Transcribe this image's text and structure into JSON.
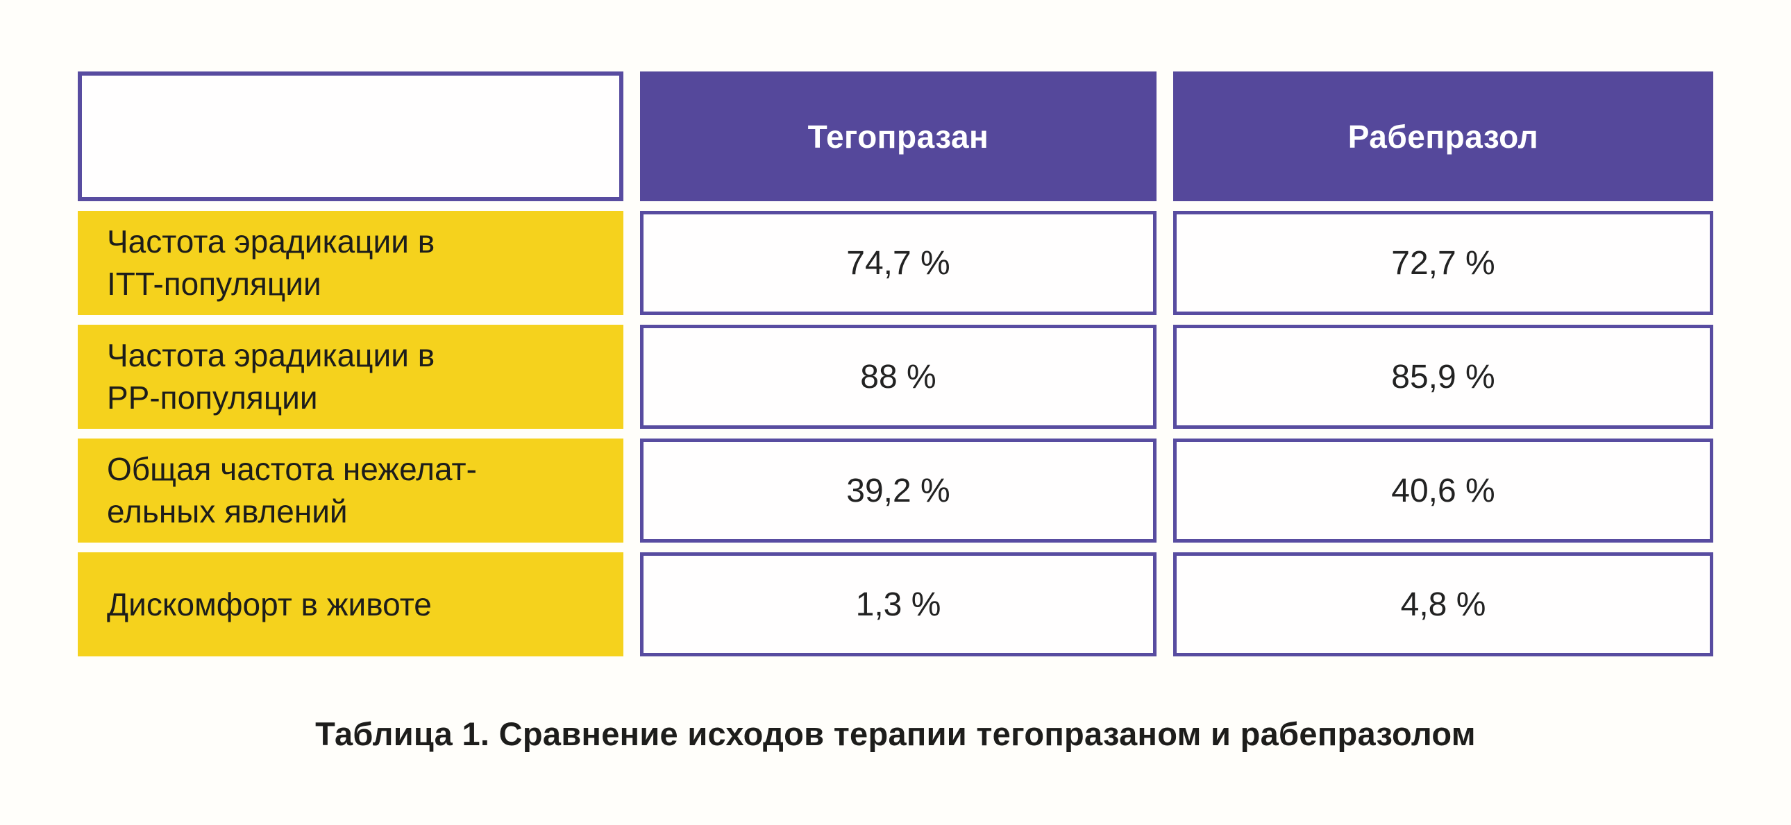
{
  "page": {
    "background": "#fffefa"
  },
  "colors": {
    "header_purple": "#55489B",
    "border_purple": "#584CA0",
    "label_yellow": "#F5D21D",
    "header_text": "#FFFFFF",
    "body_text": "#1D1D1B"
  },
  "table": {
    "columns": [
      "Тегопразан",
      "Рабепразол"
    ],
    "rows": [
      {
        "label": "Частота эрадикации в\nITT-популяции",
        "tegoprazan": "74,7 %",
        "rabeprazol": "72,7 %"
      },
      {
        "label": "Частота эрадикации в\nPP-популяции",
        "tegoprazan": "88 %",
        "rabeprazol": "85,9 %"
      },
      {
        "label": "Общая частота нежелат-\nельных явлений",
        "tegoprazan": "39,2 %",
        "rabeprazol": "40,6 %"
      },
      {
        "label": "Дискомфорт в животе",
        "tegoprazan": "1,3 %",
        "rabeprazol": "4,8 %"
      }
    ],
    "caption": "Таблица 1. Сравнение исходов терапии тегопразаном и рабепразолом"
  },
  "chart_data": {
    "type": "table",
    "title": "Таблица 1. Сравнение исходов терапии тегопразаном и рабепразолом",
    "columns": [
      "",
      "Тегопразан",
      "Рабепразол"
    ],
    "rows": [
      [
        "Частота эрадикации в ITT-популяции",
        "74,7 %",
        "72,7 %"
      ],
      [
        "Частота эрадикации в PP-популяции",
        "88 %",
        "85,9 %"
      ],
      [
        "Общая частота нежелательных явлений",
        "39,2 %",
        "40,6 %"
      ],
      [
        "Дискомфорт в животе",
        "1,3 %",
        "4,8 %"
      ]
    ],
    "series": [
      {
        "name": "Тегопразан",
        "values": [
          74.7,
          88,
          39.2,
          1.3
        ]
      },
      {
        "name": "Рабепразол",
        "values": [
          72.7,
          85.9,
          40.6,
          4.8
        ]
      }
    ],
    "categories": [
      "Частота эрадикации в ITT-популяции",
      "Частота эрадикации в PP-популяции",
      "Общая частота нежелательных явлений",
      "Дискомфорт в животе"
    ],
    "unit": "%"
  }
}
